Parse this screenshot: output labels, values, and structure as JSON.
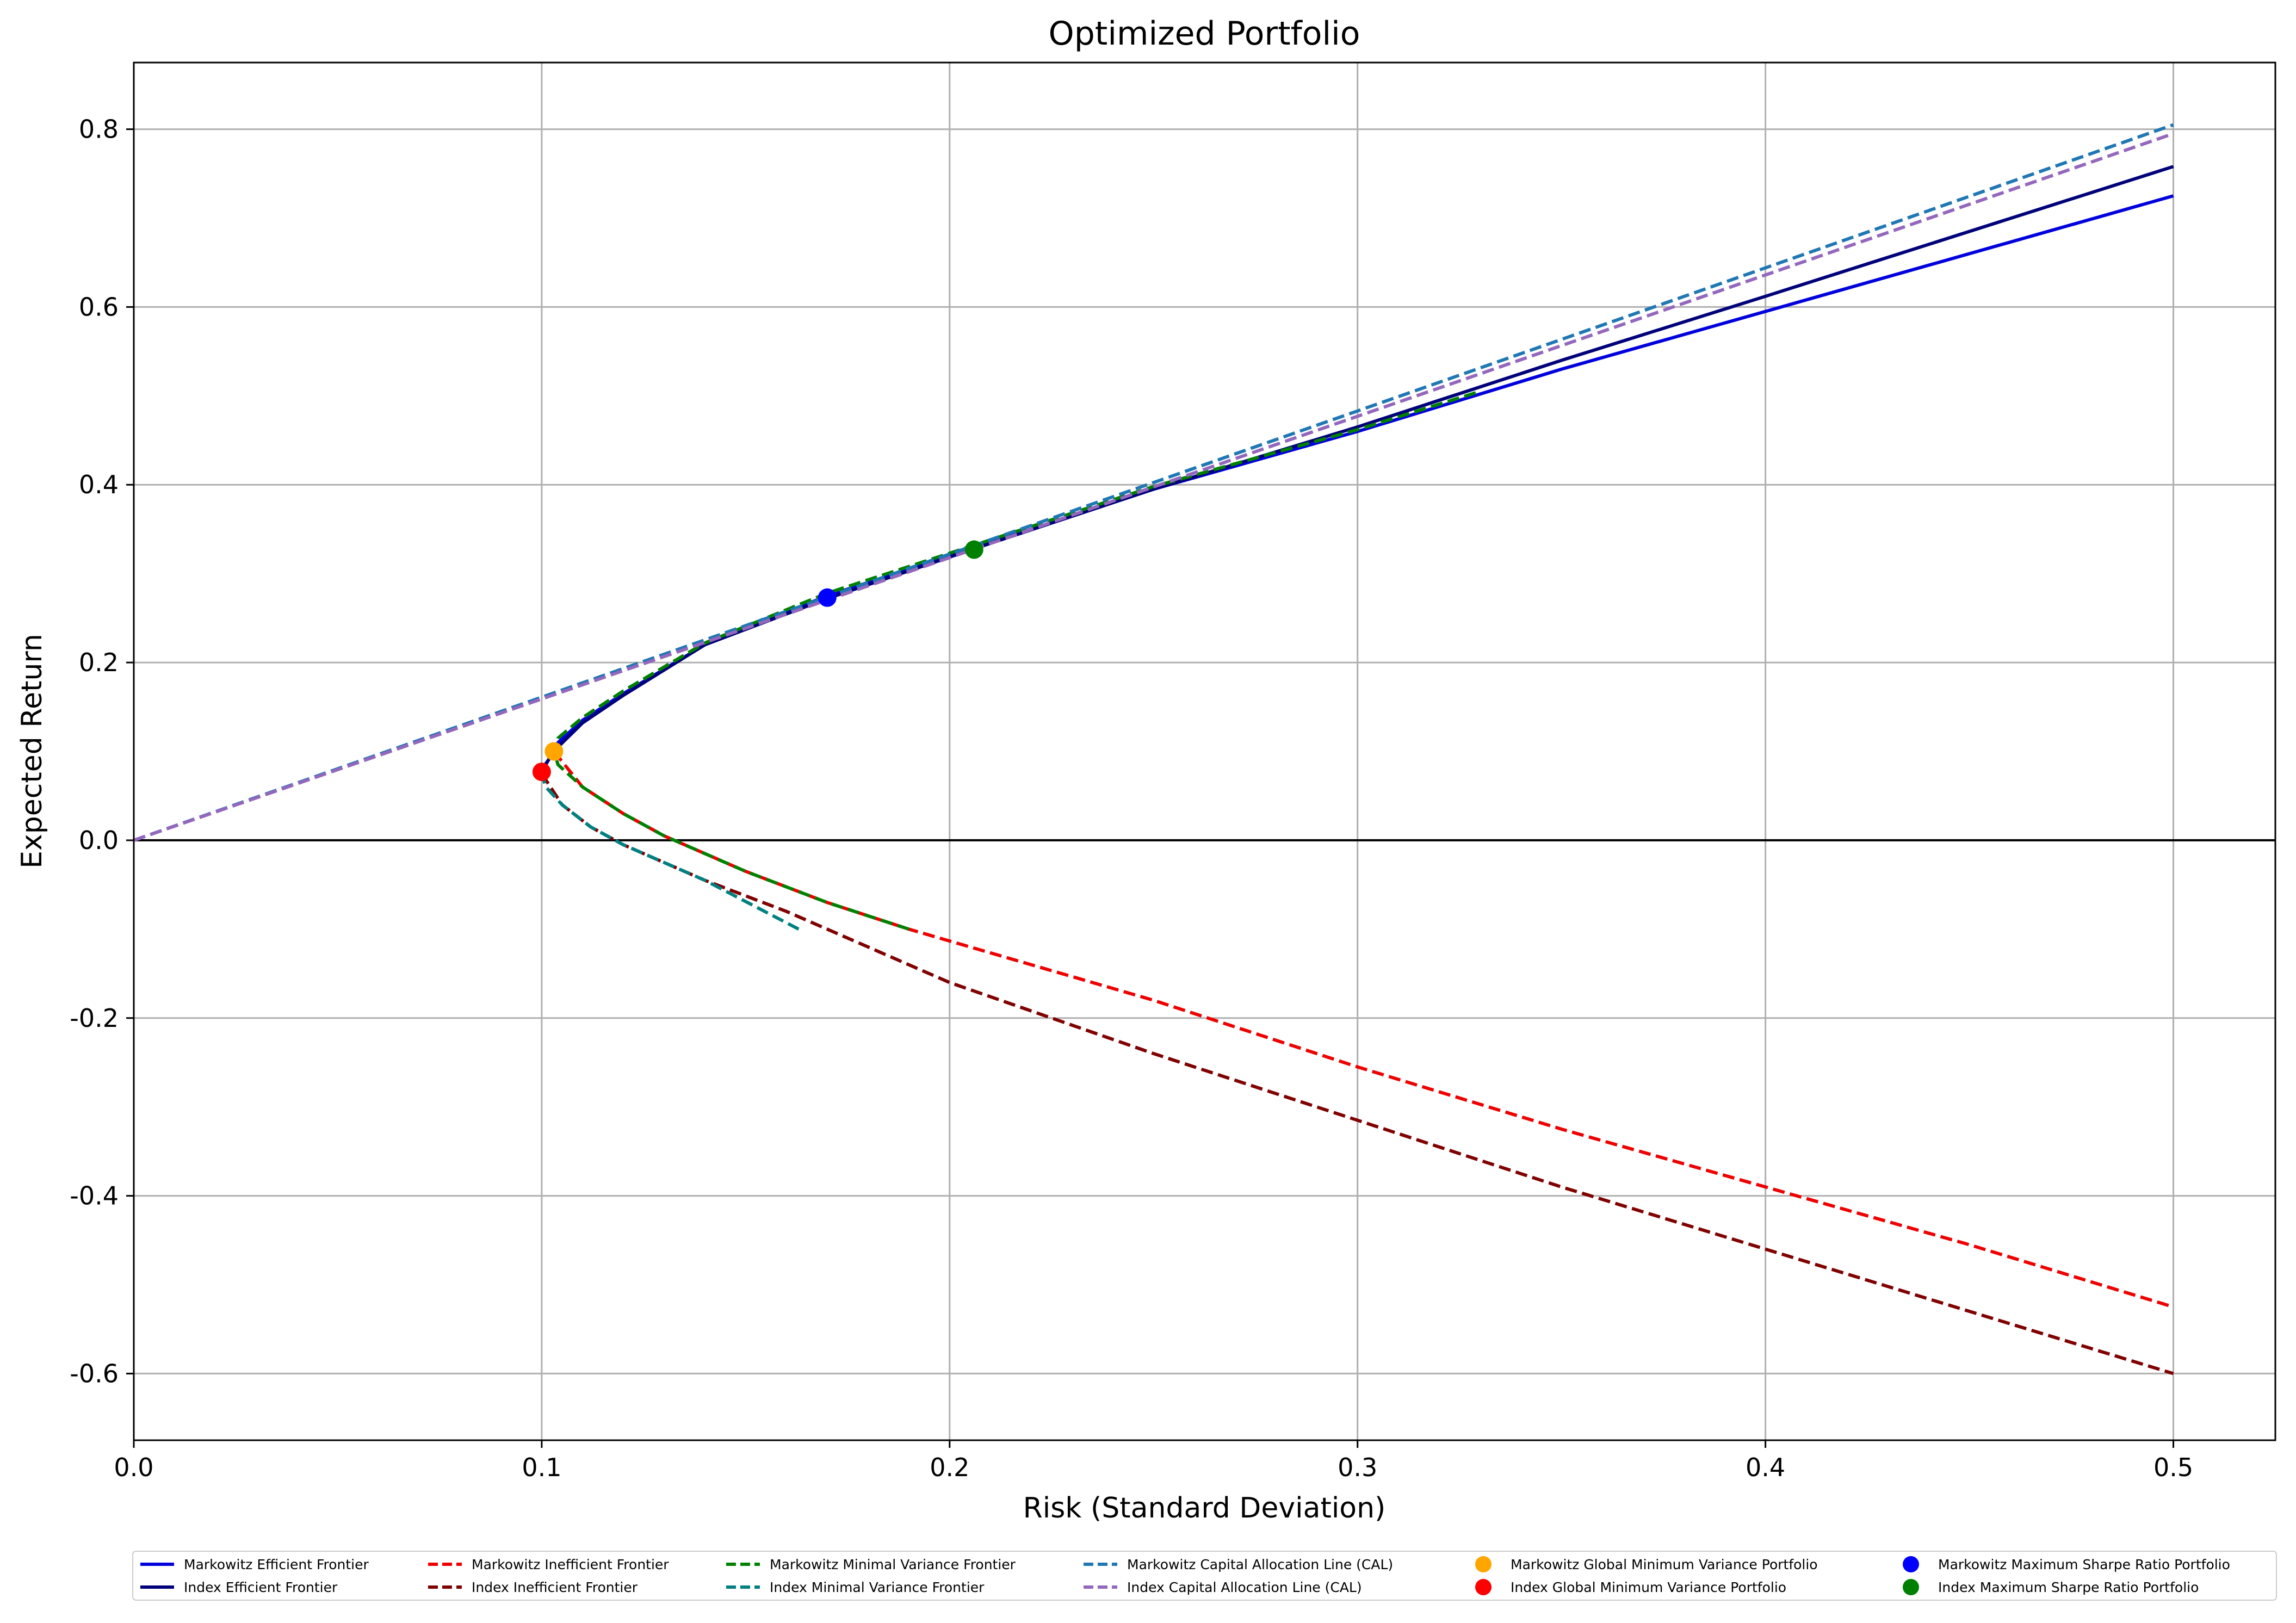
{
  "chart_data": {
    "type": "line",
    "title": "Optimized Portfolio",
    "xlabel": "Risk (Standard Deviation)",
    "ylabel": "Expected Return",
    "xlim": [
      0.0,
      0.525
    ],
    "ylim": [
      -0.675,
      0.875
    ],
    "xticks": [
      "0.0",
      "0.1",
      "0.2",
      "0.3",
      "0.4",
      "0.5"
    ],
    "xtick_values": [
      0.0,
      0.1,
      0.2,
      0.3,
      0.4,
      0.5
    ],
    "yticks": [
      "-0.6",
      "-0.4",
      "-0.2",
      "0.0",
      "0.2",
      "0.4",
      "0.6",
      "0.8"
    ],
    "ytick_values": [
      -0.6,
      -0.4,
      -0.2,
      0.0,
      0.2,
      0.4,
      0.6,
      0.8
    ],
    "grid": true,
    "zero_line": true,
    "legend_position": "below",
    "series": [
      {
        "name": "Markowitz Efficient Frontier",
        "style": "solid",
        "color": "#0000dd",
        "x": [
          0.101,
          0.104,
          0.11,
          0.12,
          0.14,
          0.17,
          0.2,
          0.25,
          0.3,
          0.35,
          0.4,
          0.45,
          0.5
        ],
        "y": [
          0.085,
          0.11,
          0.135,
          0.165,
          0.22,
          0.275,
          0.32,
          0.395,
          0.46,
          0.53,
          0.595,
          0.66,
          0.725
        ]
      },
      {
        "name": "Index Efficient Frontier",
        "style": "solid",
        "color": "#00007a",
        "x": [
          0.1,
          0.104,
          0.11,
          0.12,
          0.14,
          0.17,
          0.206,
          0.25,
          0.3,
          0.35,
          0.4,
          0.45,
          0.5
        ],
        "y": [
          0.08,
          0.105,
          0.132,
          0.163,
          0.22,
          0.272,
          0.328,
          0.395,
          0.465,
          0.54,
          0.612,
          0.685,
          0.758
        ]
      },
      {
        "name": "Markowitz Inefficient Frontier",
        "style": "dashed",
        "color": "#ee0000",
        "x": [
          0.103,
          0.11,
          0.12,
          0.13,
          0.15,
          0.17,
          0.19,
          0.25,
          0.3,
          0.35,
          0.4,
          0.45,
          0.5
        ],
        "y": [
          0.1,
          0.06,
          0.03,
          0.005,
          -0.035,
          -0.07,
          -0.1,
          -0.18,
          -0.255,
          -0.325,
          -0.39,
          -0.455,
          -0.525
        ]
      },
      {
        "name": "Index Inefficient Frontier",
        "style": "dashed",
        "color": "#800000",
        "x": [
          0.1,
          0.105,
          0.112,
          0.12,
          0.13,
          0.14,
          0.16,
          0.2,
          0.25,
          0.3,
          0.35,
          0.4,
          0.45,
          0.5
        ],
        "y": [
          0.075,
          0.04,
          0.015,
          -0.005,
          -0.025,
          -0.045,
          -0.08,
          -0.16,
          -0.24,
          -0.315,
          -0.39,
          -0.46,
          -0.53,
          -0.6
        ]
      },
      {
        "name": "Markowitz Minimal Variance Frontier",
        "style": "dashed",
        "color": "#008000",
        "x": [
          0.19,
          0.17,
          0.15,
          0.13,
          0.12,
          0.11,
          0.104,
          0.103,
          0.104,
          0.11,
          0.12,
          0.14,
          0.17,
          0.2,
          0.25,
          0.3,
          0.33
        ],
        "y": [
          -0.1,
          -0.07,
          -0.035,
          0.005,
          0.03,
          0.06,
          0.085,
          0.1,
          0.115,
          0.138,
          0.168,
          0.222,
          0.278,
          0.323,
          0.398,
          0.462,
          0.505
        ]
      },
      {
        "name": "Index Minimal Variance Frontier",
        "style": "dashed",
        "color": "#008080",
        "x": [
          0.163,
          0.14,
          0.13,
          0.12,
          0.112,
          0.105,
          0.101,
          0.1
        ],
        "y": [
          -0.1,
          -0.045,
          -0.025,
          -0.005,
          0.015,
          0.04,
          0.06,
          0.075
        ]
      },
      {
        "name": "Markowitz Capital Allocation Line (CAL)",
        "style": "dashed",
        "color": "#1f77b4",
        "x": [
          0.0,
          0.5
        ],
        "y": [
          0.0,
          0.805
        ]
      },
      {
        "name": "Index Capital Allocation Line (CAL)",
        "style": "dashed",
        "color": "#9467bd",
        "x": [
          0.0,
          0.5
        ],
        "y": [
          0.0,
          0.795
        ]
      }
    ],
    "points": [
      {
        "name": "Markowitz Global Minimum Variance Portfolio",
        "color": "#ffa500",
        "x": 0.103,
        "y": 0.1
      },
      {
        "name": "Index Global Minimum Variance Portfolio",
        "color": "#ff0000",
        "x": 0.1,
        "y": 0.077
      },
      {
        "name": "Markowitz Maximum Sharpe Ratio Portfolio",
        "color": "#0000ff",
        "x": 0.17,
        "y": 0.273
      },
      {
        "name": "Index Maximum Sharpe Ratio Portfolio",
        "color": "#008000",
        "x": 0.206,
        "y": 0.327
      }
    ],
    "legend": [
      {
        "label": "Markowitz Efficient Frontier",
        "kind": "solid",
        "color": "#0000dd"
      },
      {
        "label": "Index Efficient Frontier",
        "kind": "solid",
        "color": "#00007a"
      },
      {
        "label": "Markowitz Inefficient Frontier",
        "kind": "dashed",
        "color": "#ee0000"
      },
      {
        "label": "Index Inefficient Frontier",
        "kind": "dashed",
        "color": "#800000"
      },
      {
        "label": "Markowitz Minimal Variance Frontier",
        "kind": "dashed",
        "color": "#008000"
      },
      {
        "label": "Index Minimal Variance Frontier",
        "kind": "dashed",
        "color": "#008080"
      },
      {
        "label": "Markowitz Capital Allocation Line (CAL)",
        "kind": "dashed",
        "color": "#1f77b4"
      },
      {
        "label": "Index Capital Allocation Line (CAL)",
        "kind": "dashed",
        "color": "#9467bd"
      },
      {
        "label": "Markowitz Global Minimum Variance Portfolio",
        "kind": "marker",
        "color": "#ffa500"
      },
      {
        "label": "Index Global Minimum Variance Portfolio",
        "kind": "marker",
        "color": "#ff0000"
      },
      {
        "label": "Markowitz Maximum Sharpe Ratio Portfolio",
        "kind": "marker",
        "color": "#0000ff"
      },
      {
        "label": "Index Maximum Sharpe Ratio Portfolio",
        "kind": "marker",
        "color": "#008000"
      }
    ]
  }
}
